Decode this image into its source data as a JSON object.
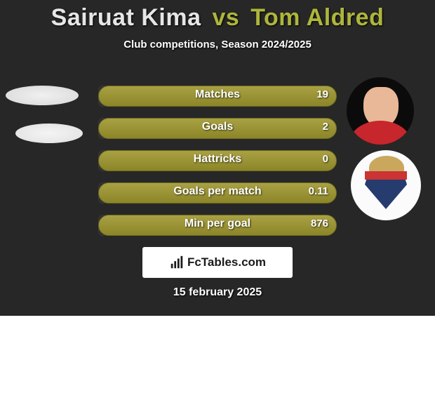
{
  "colors": {
    "background": "#272727",
    "player1_name": "#e6e6e6",
    "vs": "#aeb63b",
    "player2_name": "#aeb63b",
    "bar_right_top": "#a9a143",
    "bar_right_bottom": "#8c8628",
    "bar_left": "#2e2e2e",
    "text": "#ffffff"
  },
  "title": {
    "player1": "Sairuat Kima",
    "vs": "vs",
    "player2": "Tom Aldred"
  },
  "subtitle": "Club competitions, Season 2024/2025",
  "stats": [
    {
      "label": "Matches",
      "left_val": "",
      "right_val": "19",
      "left_w": 4,
      "right_w": 100
    },
    {
      "label": "Goals",
      "left_val": "",
      "right_val": "2",
      "left_w": 4,
      "right_w": 100
    },
    {
      "label": "Hattricks",
      "left_val": "",
      "right_val": "0",
      "left_w": 4,
      "right_w": 100
    },
    {
      "label": "Goals per match",
      "left_val": "",
      "right_val": "0.11",
      "left_w": 4,
      "right_w": 100
    },
    {
      "label": "Min per goal",
      "left_val": "",
      "right_val": "876",
      "left_w": 4,
      "right_w": 100
    }
  ],
  "footer_brand": "FcTables.com",
  "date": "15 february 2025"
}
